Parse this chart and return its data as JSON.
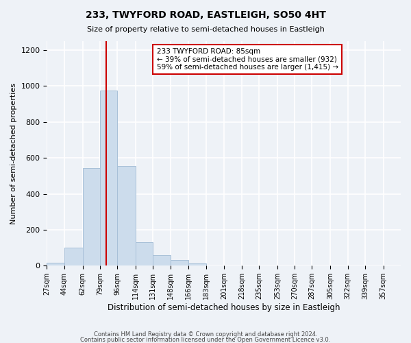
{
  "title": "233, TWYFORD ROAD, EASTLEIGH, SO50 4HT",
  "subtitle": "Size of property relative to semi-detached houses in Eastleigh",
  "xlabel": "Distribution of semi-detached houses by size in Eastleigh",
  "ylabel": "Number of semi-detached properties",
  "bar_color": "#ccdcec",
  "bar_edge_color": "#a8c0d8",
  "property_size": 85,
  "property_label": "233 TWYFORD ROAD: 85sqm",
  "pct_smaller": 39,
  "count_smaller": 932,
  "pct_larger": 59,
  "count_larger": 1415,
  "bin_edges": [
    27,
    44,
    62,
    79,
    96,
    114,
    131,
    148,
    166,
    183,
    201,
    218,
    235,
    253,
    270,
    287,
    305,
    322,
    339,
    357,
    374
  ],
  "bin_heights": [
    18,
    100,
    545,
    975,
    555,
    130,
    60,
    30,
    12,
    0,
    0,
    0,
    0,
    0,
    0,
    0,
    0,
    0,
    0,
    0
  ],
  "ylim": [
    0,
    1250
  ],
  "yticks": [
    0,
    200,
    400,
    600,
    800,
    1000,
    1200
  ],
  "annotation_box_facecolor": "#ffffff",
  "annotation_box_edgecolor": "#cc0000",
  "vline_color": "#cc0000",
  "footer1": "Contains HM Land Registry data © Crown copyright and database right 2024.",
  "footer2": "Contains public sector information licensed under the Open Government Licence v3.0.",
  "bg_color": "#eef2f7",
  "grid_color": "#ffffff"
}
